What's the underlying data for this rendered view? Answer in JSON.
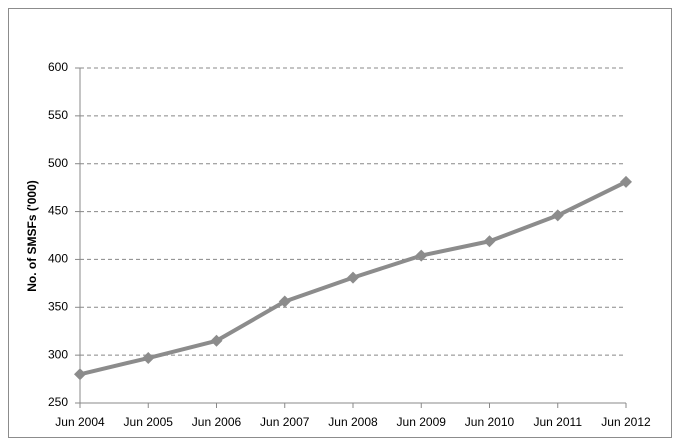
{
  "chart_data": {
    "type": "line",
    "y_label": "No. of SMSFs ('000)",
    "categories": [
      "Jun 2004",
      "Jun 2005",
      "Jun 2006",
      "Jun 2007",
      "Jun 2008",
      "Jun 2009",
      "Jun 2010",
      "Jun 2011",
      "Jun 2012"
    ],
    "values": [
      280,
      297,
      315,
      356,
      381,
      404,
      419,
      446,
      481
    ],
    "color": "#8c8c8c",
    "ylim": [
      250,
      600
    ],
    "yticks": [
      250,
      300,
      350,
      400,
      450,
      500,
      550,
      600
    ],
    "grid": true
  }
}
